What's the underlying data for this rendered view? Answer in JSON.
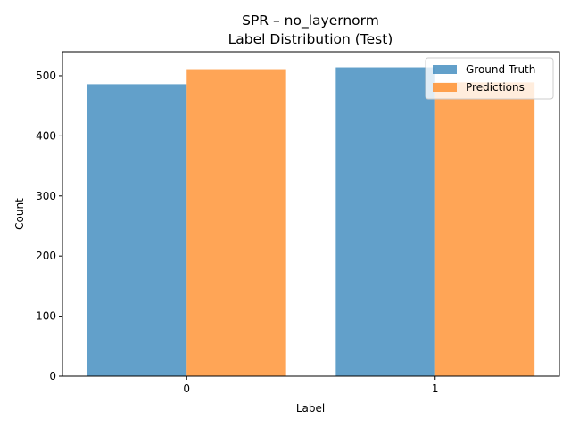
{
  "chart_data": {
    "type": "bar",
    "title_line1": "SPR – no_layernorm",
    "title_line2": "Label Distribution (Test)",
    "xlabel": "Label",
    "ylabel": "Count",
    "categories": [
      "0",
      "1"
    ],
    "series": [
      {
        "name": "Ground Truth",
        "values": [
          486,
          514
        ],
        "color": "#1f77b4"
      },
      {
        "name": "Predictions",
        "values": [
          511,
          489
        ],
        "color": "#ff7f0e"
      }
    ],
    "bar_opacity": 0.7,
    "ylim": [
      0,
      540
    ],
    "yticks": [
      0,
      100,
      200,
      300,
      400,
      500
    ],
    "grid": false,
    "legend_position": "top-right"
  }
}
